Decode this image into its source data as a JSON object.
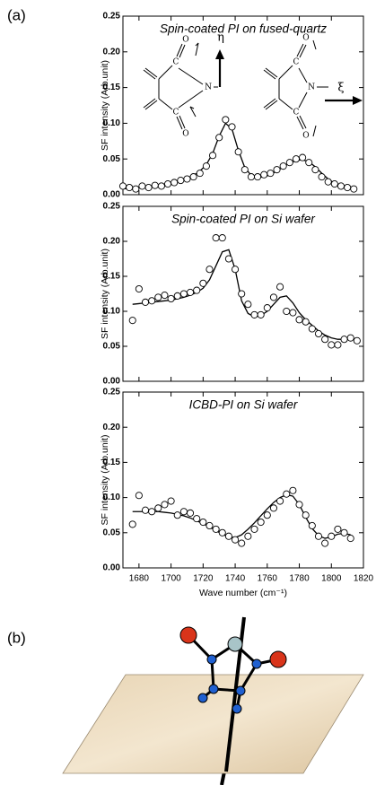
{
  "panels": [
    "(a)",
    "(b)"
  ],
  "chart_data": [
    {
      "type": "scatter",
      "title": "Spin-coated PI on fused-quartz",
      "ylabel": "SF intensity (Arb.unit)",
      "annotations": [
        "η",
        "ξ"
      ],
      "structure_atoms": [
        "C",
        "N",
        "O"
      ],
      "x": [
        1670,
        1674,
        1678,
        1682,
        1686,
        1690,
        1694,
        1698,
        1702,
        1706,
        1710,
        1714,
        1718,
        1722,
        1726,
        1730,
        1734,
        1738,
        1742,
        1746,
        1750,
        1754,
        1758,
        1762,
        1766,
        1770,
        1774,
        1778,
        1782,
        1786,
        1790,
        1794,
        1798,
        1802,
        1806,
        1810,
        1814
      ],
      "series": [
        {
          "style": "open-circle",
          "color": "#000000",
          "values": [
            0.012,
            0.01,
            0.008,
            0.012,
            0.01,
            0.013,
            0.012,
            0.015,
            0.017,
            0.02,
            0.022,
            0.025,
            0.03,
            0.04,
            0.055,
            0.08,
            0.105,
            0.095,
            0.06,
            0.035,
            0.025,
            0.025,
            0.028,
            0.03,
            0.035,
            0.04,
            0.045,
            0.05,
            0.052,
            0.045,
            0.035,
            0.025,
            0.018,
            0.015,
            0.012,
            0.01,
            0.008
          ]
        },
        {
          "style": "line",
          "color": "#000000",
          "values": [
            0.008,
            0.009,
            0.01,
            0.011,
            0.012,
            0.013,
            0.014,
            0.016,
            0.018,
            0.02,
            0.023,
            0.027,
            0.033,
            0.042,
            0.058,
            0.082,
            0.1,
            0.092,
            0.062,
            0.038,
            0.027,
            0.024,
            0.025,
            0.028,
            0.033,
            0.039,
            0.044,
            0.048,
            0.049,
            0.046,
            0.039,
            0.03,
            0.022,
            0.016,
            0.012,
            0.01,
            0.009
          ]
        }
      ],
      "xlim": [
        1670,
        1820
      ],
      "xticks": [
        1680,
        1700,
        1720,
        1740,
        1760,
        1780,
        1800,
        1820
      ],
      "ylim": [
        0,
        0.25
      ],
      "yticks": [
        {
          "value": 0,
          "label": "0.00"
        },
        {
          "value": 0.05,
          "label": "0.05"
        },
        {
          "value": 0.1,
          "label": "0.10"
        },
        {
          "value": 0.15,
          "label": "0.15"
        },
        {
          "value": 0.2,
          "label": "0.20"
        },
        {
          "value": 0.25,
          "label": "0.25"
        }
      ]
    },
    {
      "type": "scatter",
      "title": "Spin-coated PI on Si wafer",
      "ylabel": "SF intensity (Arb.unit)",
      "x": [
        1676,
        1680,
        1684,
        1688,
        1692,
        1696,
        1700,
        1704,
        1708,
        1712,
        1716,
        1720,
        1724,
        1728,
        1732,
        1736,
        1740,
        1744,
        1748,
        1752,
        1756,
        1760,
        1764,
        1768,
        1772,
        1776,
        1780,
        1784,
        1788,
        1792,
        1796,
        1800,
        1804,
        1808,
        1812,
        1816
      ],
      "series": [
        {
          "style": "open-circle",
          "color": "#000000",
          "values": [
            0.087,
            0.132,
            0.113,
            0.115,
            0.12,
            0.123,
            0.118,
            0.122,
            0.125,
            0.127,
            0.13,
            0.14,
            0.16,
            0.205,
            0.205,
            0.175,
            0.16,
            0.125,
            0.11,
            0.095,
            0.095,
            0.105,
            0.12,
            0.135,
            0.1,
            0.098,
            0.088,
            0.085,
            0.075,
            0.068,
            0.06,
            0.052,
            0.052,
            0.06,
            0.062,
            0.058
          ]
        },
        {
          "style": "line",
          "color": "#000000",
          "values": [
            0.11,
            0.111,
            0.112,
            0.113,
            0.114,
            0.115,
            0.116,
            0.118,
            0.12,
            0.123,
            0.127,
            0.133,
            0.145,
            0.165,
            0.185,
            0.188,
            0.16,
            0.115,
            0.097,
            0.092,
            0.094,
            0.1,
            0.11,
            0.12,
            0.122,
            0.112,
            0.098,
            0.088,
            0.08,
            0.072,
            0.066,
            0.062,
            0.06,
            0.06,
            0.06,
            0.06
          ]
        }
      ],
      "xlim": [
        1670,
        1820
      ],
      "xticks": [
        1680,
        1700,
        1720,
        1740,
        1760,
        1780,
        1800,
        1820
      ],
      "ylim": [
        0,
        0.25
      ],
      "yticks": [
        {
          "value": 0,
          "label": "0.00"
        },
        {
          "value": 0.05,
          "label": "0.05"
        },
        {
          "value": 0.1,
          "label": "0.10"
        },
        {
          "value": 0.15,
          "label": "0.15"
        },
        {
          "value": 0.2,
          "label": "0.20"
        },
        {
          "value": 0.25,
          "label": "0.25"
        }
      ]
    },
    {
      "type": "scatter",
      "title": "ICBD-PI on Si wafer",
      "ylabel": "SF intensity (Arb.unit)",
      "xlabel": "Wave number (cm⁻¹)",
      "x": [
        1676,
        1680,
        1684,
        1688,
        1692,
        1696,
        1700,
        1704,
        1708,
        1712,
        1716,
        1720,
        1724,
        1728,
        1732,
        1736,
        1740,
        1744,
        1748,
        1752,
        1756,
        1760,
        1764,
        1768,
        1772,
        1776,
        1780,
        1784,
        1788,
        1792,
        1796,
        1800,
        1804,
        1808,
        1812
      ],
      "series": [
        {
          "style": "open-circle",
          "color": "#000000",
          "values": [
            0.062,
            0.103,
            0.082,
            0.08,
            0.085,
            0.09,
            0.095,
            0.075,
            0.08,
            0.078,
            0.07,
            0.065,
            0.06,
            0.055,
            0.05,
            0.045,
            0.04,
            0.035,
            0.045,
            0.055,
            0.065,
            0.075,
            0.085,
            0.095,
            0.105,
            0.11,
            0.09,
            0.075,
            0.06,
            0.045,
            0.035,
            0.045,
            0.055,
            0.05,
            0.042
          ]
        },
        {
          "style": "line",
          "color": "#000000",
          "values": [
            0.08,
            0.08,
            0.08,
            0.08,
            0.08,
            0.079,
            0.078,
            0.076,
            0.074,
            0.071,
            0.067,
            0.063,
            0.058,
            0.053,
            0.048,
            0.044,
            0.043,
            0.047,
            0.055,
            0.064,
            0.074,
            0.084,
            0.093,
            0.1,
            0.104,
            0.102,
            0.09,
            0.072,
            0.056,
            0.046,
            0.042,
            0.044,
            0.048,
            0.049,
            0.047
          ]
        }
      ],
      "xlim": [
        1670,
        1820
      ],
      "xticks": [
        1680,
        1700,
        1720,
        1740,
        1760,
        1780,
        1800,
        1820
      ],
      "ylim": [
        0,
        0.25
      ],
      "yticks": [
        {
          "value": 0,
          "label": "0.00"
        },
        {
          "value": 0.05,
          "label": "0.05"
        },
        {
          "value": 0.1,
          "label": "0.10"
        },
        {
          "value": 0.15,
          "label": "0.15"
        },
        {
          "value": 0.2,
          "label": "0.20"
        },
        {
          "value": 0.25,
          "label": "0.25"
        }
      ]
    }
  ]
}
